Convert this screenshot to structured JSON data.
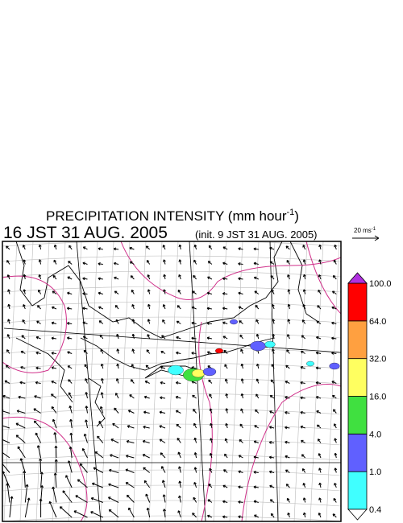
{
  "title": "PRECIPITATION INTENSITY (mm hour",
  "title_sup": "-1",
  "title_end": ")",
  "time": "16 JST 31 AUG. 2005",
  "init": "(init. 9 JST 31 AUG. 2005)",
  "wind_scale": {
    "label": "20 ms",
    "sup": "-1"
  },
  "colorbar": {
    "ticks": [
      {
        "value": 0.4,
        "label": "0.4"
      },
      {
        "value": 1,
        "label": "1.0"
      },
      {
        "value": 4,
        "label": "4.0"
      },
      {
        "value": 16,
        "label": "16.0"
      },
      {
        "value": 32,
        "label": "32.0"
      },
      {
        "value": 64,
        "label": "64.0"
      },
      {
        "value": 100,
        "label": "100.0"
      }
    ],
    "colors": [
      "#40ffff",
      "#6060ff",
      "#40e040",
      "#ffff60",
      "#ffa040",
      "#ff0000"
    ],
    "over_color": "#b030e0",
    "under_color": "#ffffff"
  }
}
